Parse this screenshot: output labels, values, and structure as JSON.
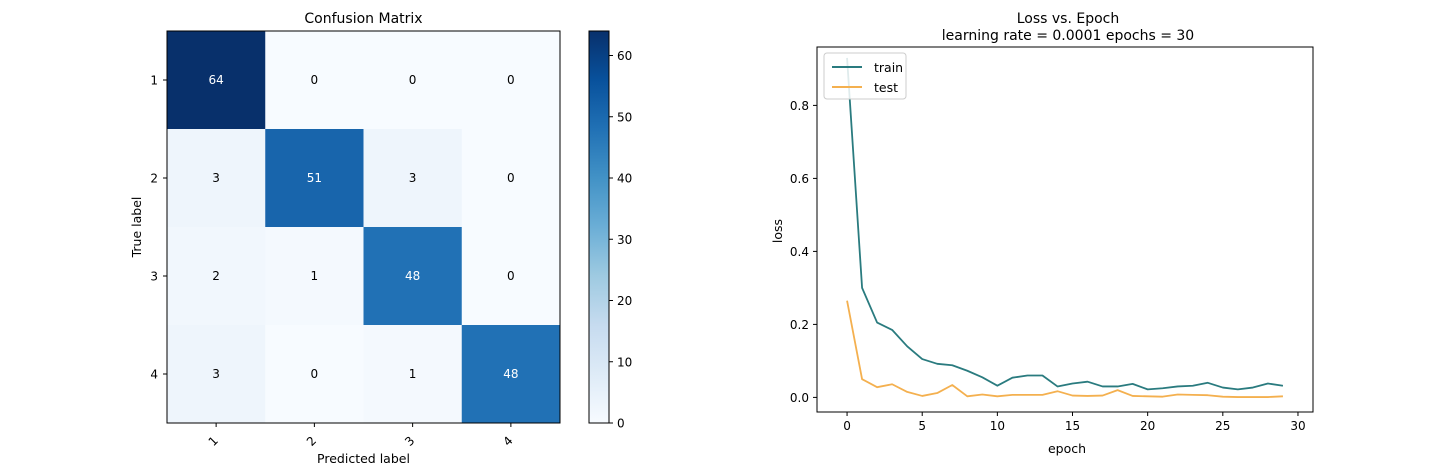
{
  "chart_data": [
    {
      "type": "heatmap",
      "title": "Confusion Matrix",
      "xlabel": "Predicted label",
      "ylabel": "True label",
      "x_tick_labels": [
        "1",
        "2",
        "3",
        "4"
      ],
      "y_tick_labels": [
        "1",
        "2",
        "3",
        "4"
      ],
      "matrix": [
        [
          64,
          0,
          0,
          0
        ],
        [
          3,
          51,
          3,
          0
        ],
        [
          2,
          1,
          48,
          0
        ],
        [
          3,
          0,
          1,
          48
        ]
      ],
      "colormap": "Blues",
      "colorbar": {
        "range": [
          0,
          64
        ],
        "ticks": [
          0,
          10,
          20,
          30,
          40,
          50,
          60
        ],
        "tick_labels": [
          "0",
          "10",
          "20",
          "30",
          "40",
          "50",
          "60"
        ]
      }
    },
    {
      "type": "line",
      "title": "Loss vs. Epoch",
      "subtitle": "learning rate = 0.0001 epochs = 30",
      "xlabel": "epoch",
      "ylabel": "loss",
      "xlim": [
        -2,
        31
      ],
      "ylim": [
        -0.04,
        0.96
      ],
      "x_ticks": [
        0,
        5,
        10,
        15,
        20,
        25,
        30
      ],
      "x_tick_labels": [
        "0",
        "5",
        "10",
        "15",
        "20",
        "25",
        "30"
      ],
      "y_ticks": [
        0.0,
        0.2,
        0.4,
        0.6,
        0.8
      ],
      "y_tick_labels": [
        "0.0",
        "0.2",
        "0.4",
        "0.6",
        "0.8"
      ],
      "legend_position": "top-left",
      "x": [
        0,
        1,
        2,
        3,
        4,
        5,
        6,
        7,
        8,
        9,
        10,
        11,
        12,
        13,
        14,
        15,
        16,
        17,
        18,
        19,
        20,
        21,
        22,
        23,
        24,
        25,
        26,
        27,
        28,
        29
      ],
      "series": [
        {
          "name": "train",
          "color": "#2a7b7f",
          "values": [
            0.93,
            0.3,
            0.205,
            0.185,
            0.14,
            0.105,
            0.092,
            0.088,
            0.073,
            0.055,
            0.032,
            0.054,
            0.06,
            0.06,
            0.03,
            0.038,
            0.043,
            0.03,
            0.03,
            0.037,
            0.022,
            0.025,
            0.03,
            0.032,
            0.04,
            0.027,
            0.022,
            0.027,
            0.038,
            0.032
          ]
        },
        {
          "name": "test",
          "color": "#f4b04f",
          "values": [
            0.265,
            0.05,
            0.028,
            0.036,
            0.015,
            0.004,
            0.012,
            0.034,
            0.003,
            0.008,
            0.003,
            0.007,
            0.007,
            0.007,
            0.017,
            0.005,
            0.004,
            0.005,
            0.02,
            0.004,
            0.003,
            0.002,
            0.008,
            0.007,
            0.006,
            0.002,
            0.001,
            0.001,
            0.001,
            0.003
          ]
        }
      ]
    }
  ]
}
